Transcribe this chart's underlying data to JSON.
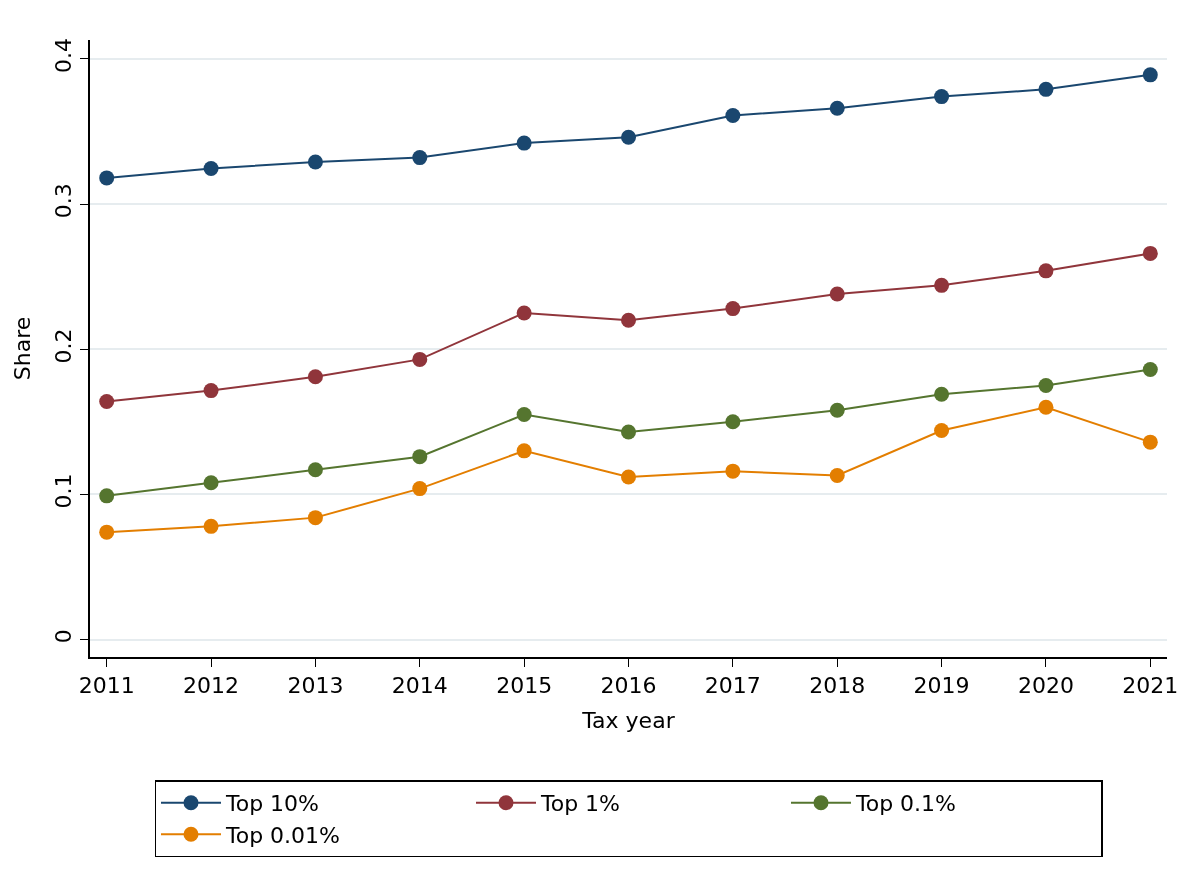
{
  "chart_data": {
    "type": "line",
    "xlabel": "Tax year",
    "ylabel": "Share",
    "x": [
      2011,
      2012,
      2013,
      2014,
      2015,
      2016,
      2017,
      2018,
      2019,
      2020,
      2021
    ],
    "xlim": [
      2010.84,
      2021.16
    ],
    "xticks": [
      2011,
      2012,
      2013,
      2014,
      2015,
      2016,
      2017,
      2018,
      2019,
      2020,
      2021
    ],
    "ylim": [
      -0.012,
      0.413
    ],
    "yticks": [
      0,
      0.1,
      0.2,
      0.3,
      0.4
    ],
    "grid": "y",
    "legend": "bottom",
    "marker": "circle",
    "line_style": "solid",
    "series": [
      {
        "name": "Top 10%",
        "color": "#1a476f",
        "values": [
          0.318,
          0.3245,
          0.329,
          0.332,
          0.342,
          0.346,
          0.361,
          0.366,
          0.374,
          0.379,
          0.389
        ]
      },
      {
        "name": "Top 1%",
        "color": "#90353b",
        "values": [
          0.164,
          0.1715,
          0.181,
          0.193,
          0.225,
          0.22,
          0.228,
          0.238,
          0.244,
          0.254,
          0.266
        ]
      },
      {
        "name": "Top 0.1%",
        "color": "#55752f",
        "values": [
          0.099,
          0.108,
          0.117,
          0.126,
          0.155,
          0.143,
          0.15,
          0.158,
          0.169,
          0.175,
          0.186
        ]
      },
      {
        "name": "Top 0.01%",
        "color": "#e37e00",
        "values": [
          0.074,
          0.078,
          0.084,
          0.104,
          0.13,
          0.112,
          0.116,
          0.113,
          0.144,
          0.16,
          0.136
        ]
      }
    ]
  }
}
